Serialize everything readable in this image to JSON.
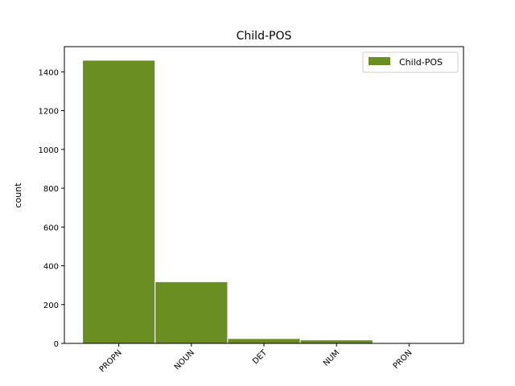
{
  "chart_data": {
    "type": "bar",
    "title": "Child-POS",
    "xlabel": "",
    "ylabel": "count",
    "categories": [
      "PROPN",
      "NOUN",
      "DET",
      "NUM",
      "PRON"
    ],
    "series": [
      {
        "name": "Child-POS",
        "values": [
          1460,
          318,
          25,
          18,
          3
        ]
      }
    ],
    "ylim": [
      0,
      1530
    ],
    "yticks": [
      0,
      200,
      400,
      600,
      800,
      1000,
      1200,
      1400
    ],
    "bar_color": "#6b8e23",
    "grid": false,
    "legend": "top-right",
    "xtick_rotation": -45
  }
}
